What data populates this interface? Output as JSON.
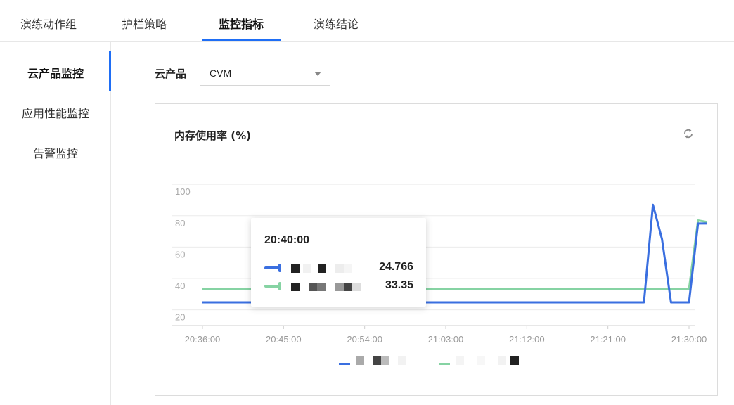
{
  "tabs": [
    {
      "label": "演练动作组",
      "active": false
    },
    {
      "label": "护栏策略",
      "active": false
    },
    {
      "label": "监控指标",
      "active": true
    },
    {
      "label": "演练结论",
      "active": false
    }
  ],
  "sidebar": {
    "items": [
      {
        "label": "云产品监控",
        "active": true
      },
      {
        "label": "应用性能监控",
        "active": false
      },
      {
        "label": "告警监控",
        "active": false
      }
    ]
  },
  "filter": {
    "label": "云产品",
    "selected": "CVM"
  },
  "colors": {
    "accent": "#1f6ef5",
    "series_blue": "#3a6fe0",
    "series_green": "#86d3a3"
  },
  "refresh_icon": "refresh-icon",
  "chart_data": {
    "type": "line",
    "title": "内存使用率 (%)",
    "xlabel": "",
    "ylabel": "",
    "ylim": [
      10,
      105
    ],
    "yticks": [
      100,
      80,
      60,
      40,
      20
    ],
    "grid": true,
    "legend_position": "bottom",
    "x": [
      "20:36:00",
      "20:45:00",
      "20:54:00",
      "21:03:00",
      "21:12:00",
      "21:21:00",
      "21:25:00",
      "21:26:00",
      "21:27:00",
      "21:28:00",
      "21:30:00",
      "21:31:00",
      "21:32:00"
    ],
    "xticks": [
      "20:36:00",
      "20:45:00",
      "20:54:00",
      "21:03:00",
      "21:12:00",
      "21:21:00",
      "21:30:00"
    ],
    "series": [
      {
        "color": "#3a6fe0",
        "values": [
          24.766,
          24.766,
          24.766,
          24.766,
          24.766,
          24.766,
          24.766,
          87,
          65,
          24.766,
          24.766,
          75,
          75
        ]
      },
      {
        "color": "#86d3a3",
        "values": [
          33.35,
          33.35,
          33.35,
          33.35,
          33.35,
          33.35,
          33.35,
          33.35,
          33.35,
          33.35,
          33.35,
          77,
          76
        ]
      }
    ],
    "tooltip": {
      "time": "20:40:00",
      "values": [
        "24.766",
        "33.35"
      ]
    }
  }
}
